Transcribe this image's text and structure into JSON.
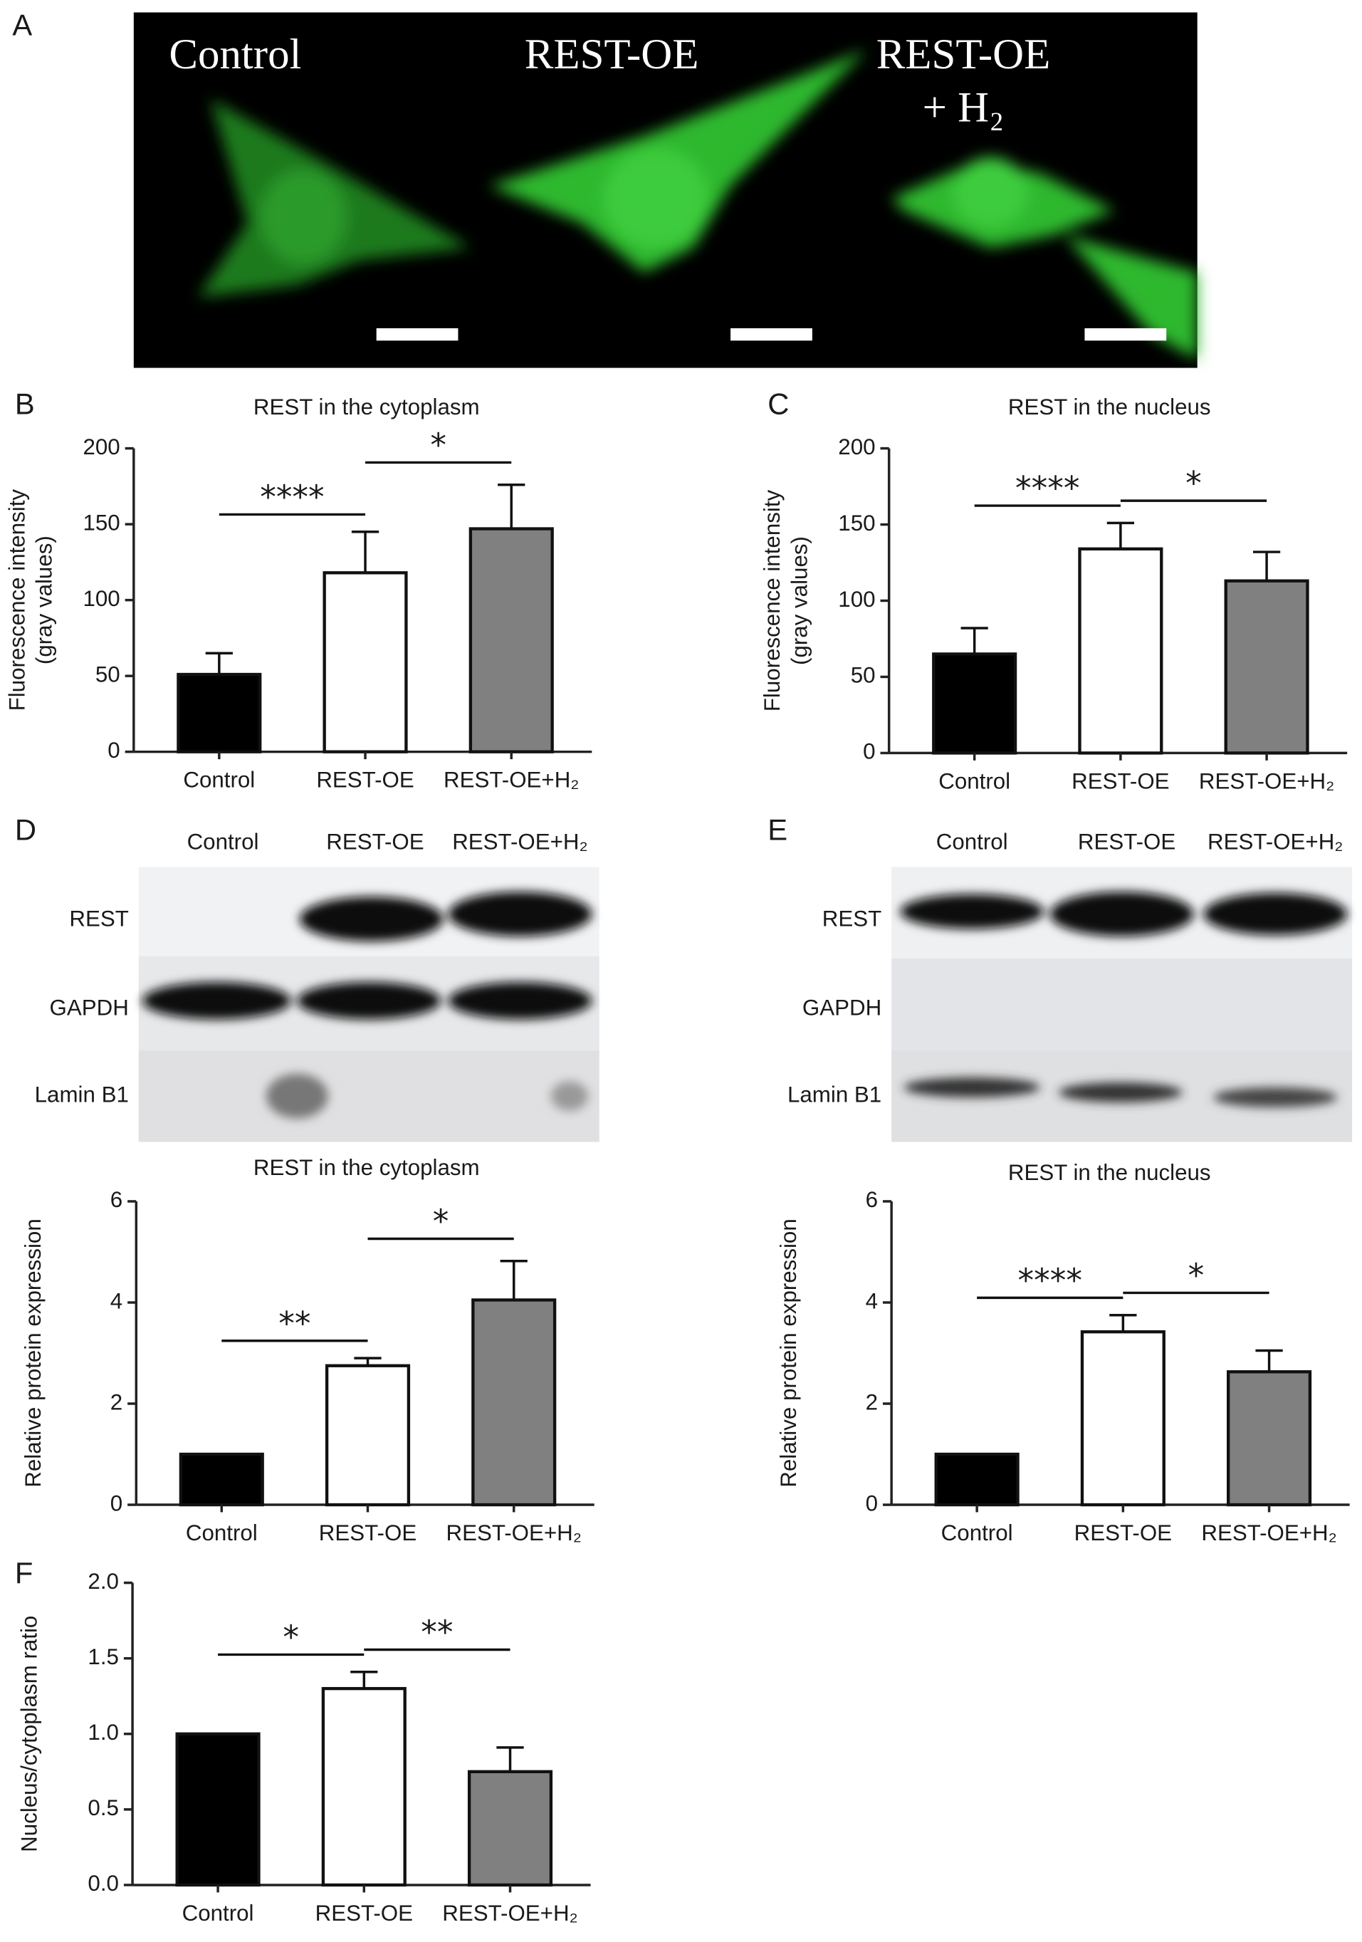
{
  "micrograph": {
    "panel": "A",
    "labels": [
      [
        "Control"
      ],
      [
        "REST-OE"
      ],
      [
        "REST-OE",
        "+ H₂"
      ]
    ]
  },
  "blots": [
    {
      "panel": "D",
      "lanes": [
        "Control",
        "REST-OE",
        "REST-OE+H₂"
      ],
      "rows": [
        "REST",
        "GAPDH",
        "Lamin B1"
      ]
    },
    {
      "panel": "E",
      "lanes": [
        "Control",
        "REST-OE",
        "REST-OE+H₂"
      ],
      "rows": [
        "REST",
        "GAPDH",
        "Lamin B1"
      ]
    }
  ],
  "chart_data": [
    {
      "type": "bar",
      "panel": "B",
      "title": "REST in the cytoplasm",
      "ylabel": [
        "Fluorescence intensity",
        "(gray values)"
      ],
      "categories": [
        "Control",
        "REST-OE",
        "REST-OE+H₂"
      ],
      "values": [
        51,
        118,
        147
      ],
      "errors": [
        14,
        27,
        29
      ],
      "colors": [
        "#000000",
        "#ffffff",
        "#808080"
      ],
      "ylim": [
        0,
        200
      ],
      "yticks": [
        0,
        50,
        100,
        150,
        200
      ],
      "significance": [
        "****",
        "*"
      ]
    },
    {
      "type": "bar",
      "panel": "C",
      "title": "REST in the nucleus",
      "ylabel": [
        "Fluorescence intensity",
        "(gray values)"
      ],
      "categories": [
        "Control",
        "REST-OE",
        "REST-OE+H₂"
      ],
      "values": [
        65,
        134,
        113
      ],
      "errors": [
        17,
        17,
        19
      ],
      "colors": [
        "#000000",
        "#ffffff",
        "#808080"
      ],
      "ylim": [
        0,
        200
      ],
      "yticks": [
        0,
        50,
        100,
        150,
        200
      ],
      "significance": [
        "****",
        "*"
      ]
    },
    {
      "type": "bar",
      "title": "REST in the cytoplasm",
      "ylabel": [
        "Relative protein expression"
      ],
      "categories": [
        "Control",
        "REST-OE",
        "REST-OE+H₂"
      ],
      "values": [
        1,
        2.75,
        4.05
      ],
      "errors": [
        0,
        0.15,
        0.77
      ],
      "colors": [
        "#000000",
        "#ffffff",
        "#808080"
      ],
      "ylim": [
        0,
        6
      ],
      "yticks": [
        0,
        2,
        4,
        6
      ],
      "significance": [
        "**",
        "*"
      ]
    },
    {
      "type": "bar",
      "title": "REST in the nucleus",
      "ylabel": [
        "Relative protein expression"
      ],
      "categories": [
        "Control",
        "REST-OE",
        "REST-OE+H₂"
      ],
      "values": [
        1,
        3.42,
        2.63
      ],
      "errors": [
        0,
        0.33,
        0.42
      ],
      "colors": [
        "#000000",
        "#ffffff",
        "#808080"
      ],
      "ylim": [
        0,
        6
      ],
      "yticks": [
        0,
        2,
        4,
        6
      ],
      "significance": [
        "****",
        "*"
      ]
    },
    {
      "type": "bar",
      "panel": "F",
      "ylabel": [
        "Nucleus/cytoplasm ratio"
      ],
      "categories": [
        "Control",
        "REST-OE",
        "REST-OE+H₂"
      ],
      "values": [
        1.0,
        1.3,
        0.75
      ],
      "errors": [
        0,
        0.11,
        0.16
      ],
      "colors": [
        "#000000",
        "#ffffff",
        "#808080"
      ],
      "ylim": [
        0,
        2
      ],
      "yticks": [
        {
          "value": 0,
          "label": "0.0"
        },
        {
          "value": 0.5,
          "label": "0.5"
        },
        {
          "value": 1,
          "label": "1.0"
        },
        {
          "value": 1.5,
          "label": "1.5"
        },
        {
          "value": 2,
          "label": "2.0"
        }
      ],
      "significance": [
        "*",
        "**"
      ]
    }
  ]
}
